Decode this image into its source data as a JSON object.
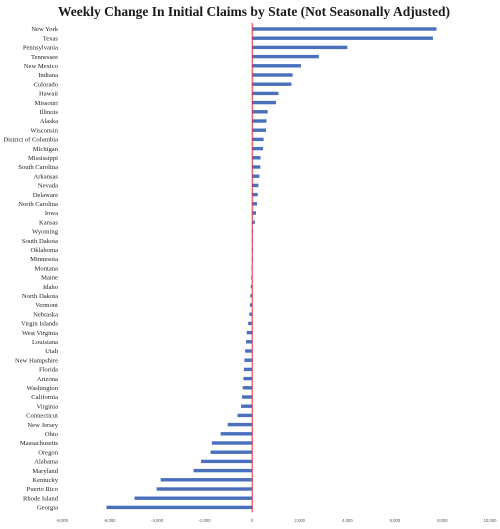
{
  "chart_data": {
    "type": "bar",
    "orientation": "horizontal",
    "title": "Weekly Change In Initial Claims by State (Not Seasonally Adjusted)",
    "xlabel": "",
    "ylabel": "",
    "xlim": [
      -8000,
      10000
    ],
    "x_ticks": [
      "-8,000",
      "-6,000",
      "-4,000",
      "-2,000",
      "0",
      "2,000",
      "4,000",
      "6,000",
      "8,000",
      "10,000"
    ],
    "x_tick_values": [
      -8000,
      -6000,
      -4000,
      -2000,
      0,
      2000,
      4000,
      6000,
      8000,
      10000
    ],
    "grid": false,
    "legend": "none",
    "bar_color": "#4a6fbd",
    "zero_line_color": "#e0303a",
    "categories": [
      "New York",
      "Texas",
      "Pennsylvania",
      "Tennessee",
      "New Mexico",
      "Indiana",
      "Colorado",
      "Hawaii",
      "Missouri",
      "Illinois",
      "Alaska",
      "Wisconsin",
      "District of Columbia",
      "Michigan",
      "Mississippi",
      "South Carolina",
      "Arkansas",
      "Nevada",
      "Delaware",
      "North Carolina",
      "Iowa",
      "Kansas",
      "Wyoming",
      "South Dakota",
      "Oklahoma",
      "Minnesota",
      "Montana",
      "Maine",
      "Idaho",
      "North Dakota",
      "Vermont",
      "Nebraska",
      "Virgin Islands",
      "West Virginia",
      "Louisiana",
      "Utah",
      "New Hampshire",
      "Florida",
      "Arizona",
      "Washington",
      "California",
      "Virginia",
      "Connecticut",
      "New Jersey",
      "Ohio",
      "Massachusetts",
      "Oregon",
      "Alabama",
      "Maryland",
      "Kentucky",
      "Puerto Rico",
      "Rhode Island",
      "Georgia"
    ],
    "values": [
      7750,
      7600,
      4000,
      2800,
      2050,
      1700,
      1650,
      1100,
      1000,
      650,
      600,
      580,
      480,
      450,
      350,
      340,
      300,
      260,
      230,
      200,
      160,
      110,
      30,
      20,
      10,
      0,
      -30,
      -40,
      -60,
      -80,
      -100,
      -120,
      -170,
      -230,
      -260,
      -300,
      -330,
      -350,
      -370,
      -400,
      -430,
      -470,
      -620,
      -1030,
      -1330,
      -1700,
      -1750,
      -2150,
      -2470,
      -3850,
      -4020,
      -4950,
      -6130
    ]
  }
}
